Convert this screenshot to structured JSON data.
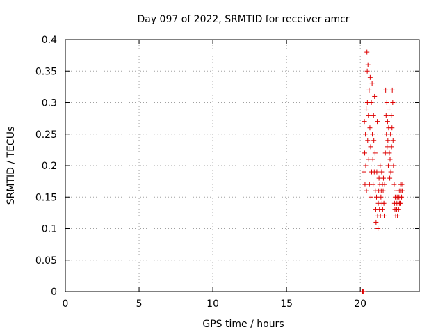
{
  "chart_data": {
    "type": "scatter",
    "title": "Day 097 of 2022, SRMTID for receiver amcr",
    "xlabel": "GPS time / hours",
    "ylabel": "SRMTID / TECUs",
    "xlim": [
      0,
      24
    ],
    "ylim": [
      0,
      0.4
    ],
    "x_ticks": [
      0,
      5,
      10,
      15,
      20
    ],
    "y_ticks": [
      0,
      0.05,
      0.1,
      0.15,
      0.2,
      0.25,
      0.3,
      0.35,
      0.4
    ],
    "x_tick_labels": [
      "0",
      "5",
      "10",
      "15",
      "20"
    ],
    "y_tick_labels": [
      "0",
      "0.05",
      "0.1",
      "0.15",
      "0.2",
      "0.25",
      "0.3",
      "0.35",
      "0.4"
    ],
    "grid": true,
    "marker": "+",
    "colors": {
      "points": "#dd0000",
      "grid": "#a0a0a0",
      "axes": "#000000"
    },
    "series": [
      {
        "points": [
          [
            20.15,
            0.0
          ],
          [
            20.18,
            0.0
          ],
          [
            20.2,
            0.0
          ],
          [
            20.25,
            0.19
          ],
          [
            20.28,
            0.27
          ],
          [
            20.3,
            0.22
          ],
          [
            20.32,
            0.17
          ],
          [
            20.35,
            0.25
          ],
          [
            20.37,
            0.2
          ],
          [
            20.4,
            0.29
          ],
          [
            20.42,
            0.16
          ],
          [
            20.45,
            0.38
          ],
          [
            20.47,
            0.35
          ],
          [
            20.48,
            0.3
          ],
          [
            20.5,
            0.24
          ],
          [
            20.52,
            0.36
          ],
          [
            20.55,
            0.28
          ],
          [
            20.57,
            0.21
          ],
          [
            20.6,
            0.32
          ],
          [
            20.62,
            0.17
          ],
          [
            20.65,
            0.26
          ],
          [
            20.67,
            0.34
          ],
          [
            20.7,
            0.23
          ],
          [
            20.72,
            0.15
          ],
          [
            20.75,
            0.3
          ],
          [
            20.77,
            0.19
          ],
          [
            20.8,
            0.33
          ],
          [
            20.82,
            0.25
          ],
          [
            20.85,
            0.21
          ],
          [
            20.87,
            0.17
          ],
          [
            20.9,
            0.28
          ],
          [
            20.92,
            0.24
          ],
          [
            20.95,
            0.19
          ],
          [
            20.97,
            0.31
          ],
          [
            21.0,
            0.22
          ],
          [
            21.02,
            0.16
          ],
          [
            21.05,
            0.13
          ],
          [
            21.07,
            0.11
          ],
          [
            21.1,
            0.15
          ],
          [
            21.12,
            0.19
          ],
          [
            21.15,
            0.27
          ],
          [
            21.17,
            0.12
          ],
          [
            21.2,
            0.1
          ],
          [
            21.22,
            0.14
          ],
          [
            21.25,
            0.16
          ],
          [
            21.27,
            0.18
          ],
          [
            21.3,
            0.13
          ],
          [
            21.32,
            0.17
          ],
          [
            21.35,
            0.2
          ],
          [
            21.37,
            0.12
          ],
          [
            21.4,
            0.15
          ],
          [
            21.42,
            0.16
          ],
          [
            21.45,
            0.19
          ],
          [
            21.47,
            0.14
          ],
          [
            21.5,
            0.17
          ],
          [
            21.52,
            0.13
          ],
          [
            21.55,
            0.16
          ],
          [
            21.57,
            0.18
          ],
          [
            21.6,
            0.14
          ],
          [
            21.62,
            0.12
          ],
          [
            21.65,
            0.17
          ],
          [
            21.7,
            0.22
          ],
          [
            21.72,
            0.32
          ],
          [
            21.75,
            0.28
          ],
          [
            21.77,
            0.25
          ],
          [
            21.8,
            0.3
          ],
          [
            21.82,
            0.23
          ],
          [
            21.85,
            0.27
          ],
          [
            21.87,
            0.24
          ],
          [
            21.9,
            0.2
          ],
          [
            21.92,
            0.26
          ],
          [
            21.95,
            0.29
          ],
          [
            21.97,
            0.22
          ],
          [
            22.0,
            0.18
          ],
          [
            22.02,
            0.21
          ],
          [
            22.05,
            0.25
          ],
          [
            22.07,
            0.19
          ],
          [
            22.1,
            0.28
          ],
          [
            22.12,
            0.23
          ],
          [
            22.15,
            0.26
          ],
          [
            22.17,
            0.32
          ],
          [
            22.2,
            0.3
          ],
          [
            22.22,
            0.24
          ],
          [
            22.25,
            0.2
          ],
          [
            22.3,
            0.17
          ],
          [
            22.32,
            0.14
          ],
          [
            22.35,
            0.13
          ],
          [
            22.37,
            0.15
          ],
          [
            22.4,
            0.12
          ],
          [
            22.42,
            0.16
          ],
          [
            22.45,
            0.14
          ],
          [
            22.47,
            0.13
          ],
          [
            22.5,
            0.15
          ],
          [
            22.52,
            0.12
          ],
          [
            22.55,
            0.14
          ],
          [
            22.57,
            0.16
          ],
          [
            22.6,
            0.13
          ],
          [
            22.62,
            0.15
          ],
          [
            22.65,
            0.14
          ],
          [
            22.67,
            0.16
          ],
          [
            22.7,
            0.15
          ],
          [
            22.72,
            0.17
          ],
          [
            22.75,
            0.14
          ],
          [
            22.77,
            0.16
          ],
          [
            22.8,
            0.15
          ],
          [
            22.82,
            0.17
          ],
          [
            22.85,
            0.16
          ]
        ]
      }
    ]
  }
}
